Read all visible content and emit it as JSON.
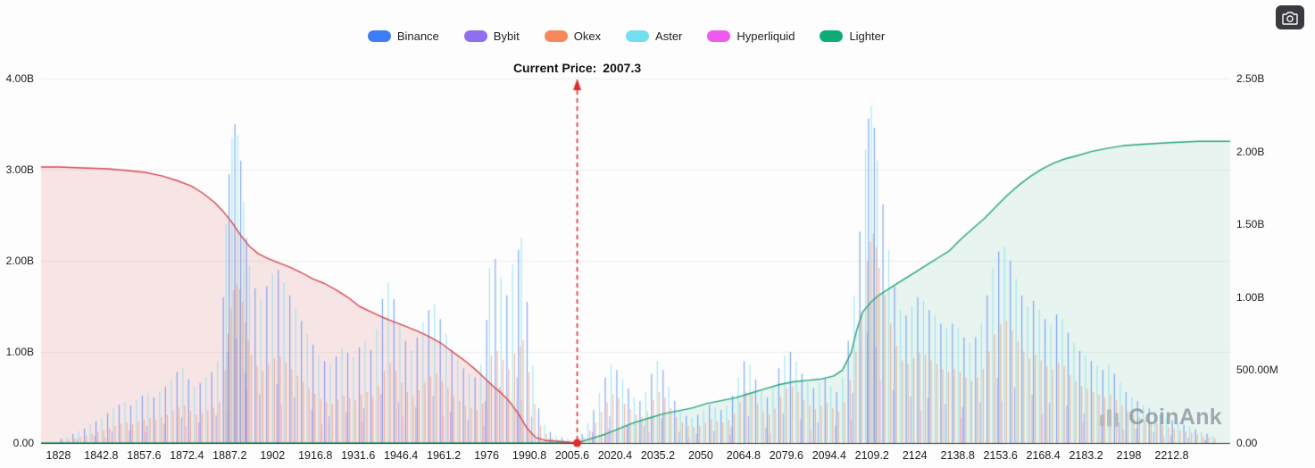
{
  "header": {
    "legend": [
      {
        "label": "Binance",
        "color": "#3D7EF5"
      },
      {
        "label": "Bybit",
        "color": "#8F6FF0"
      },
      {
        "label": "Okex",
        "color": "#F8875B"
      },
      {
        "label": "Aster",
        "color": "#73DFEE"
      },
      {
        "label": "Hyperliquid",
        "color": "#EF5BEE"
      },
      {
        "label": "Lighter",
        "color": "#0EAD75"
      }
    ]
  },
  "title": {
    "prefix": "Current Price:",
    "value": "2007.3"
  },
  "watermark": "CoinAnk",
  "chart_data": {
    "type": "area",
    "subtype": "orderbook-depth-with-bars",
    "title": "Current Price: 2007.3",
    "current_price": 2007.3,
    "current_price_line_color": "#E02B2B",
    "grid": true,
    "legend_position": "top-center",
    "x_axis": {
      "min": 1822,
      "max": 2233,
      "ticks": [
        "1828",
        "1842.8",
        "1857.6",
        "1872.4",
        "1887.2",
        "1902",
        "1916.8",
        "1931.6",
        "1946.4",
        "1961.2",
        "1976",
        "1990.8",
        "2005.6",
        "2020.4",
        "2035.2",
        "2050",
        "2064.8",
        "2079.6",
        "2094.4",
        "2109.2",
        "2124",
        "2138.8",
        "2153.6",
        "2168.4",
        "2183.2",
        "2198",
        "2212.8"
      ]
    },
    "left_axis": {
      "max": 4,
      "unit": "billions",
      "ticks": [
        {
          "label": "0.00",
          "value": 0
        },
        {
          "label": "1.00B",
          "value": 1
        },
        {
          "label": "2.00B",
          "value": 2
        },
        {
          "label": "3.00B",
          "value": 3
        },
        {
          "label": "4.00B",
          "value": 4
        }
      ]
    },
    "right_axis": {
      "max": 2.5,
      "unit": "billions",
      "ticks": [
        {
          "label": "0.00",
          "value": 0
        },
        {
          "label": "500.00M",
          "value": 0.5
        },
        {
          "label": "1.00B",
          "value": 1
        },
        {
          "label": "1.50B",
          "value": 1.5
        },
        {
          "label": "2.00B",
          "value": 2
        },
        {
          "label": "2.50B",
          "value": 2.5
        }
      ]
    },
    "series": [
      {
        "name": "cumulative-bids",
        "axis": "left",
        "line": "#D4454F",
        "fill": "rgba(212,69,79,0.13)",
        "points": [
          [
            1828,
            3.03
          ],
          [
            1836,
            3.02
          ],
          [
            1845,
            3.01
          ],
          [
            1852,
            2.99
          ],
          [
            1858,
            2.97
          ],
          [
            1864,
            2.93
          ],
          [
            1869,
            2.88
          ],
          [
            1874,
            2.82
          ],
          [
            1878,
            2.74
          ],
          [
            1882,
            2.64
          ],
          [
            1885,
            2.54
          ],
          [
            1888,
            2.42
          ],
          [
            1891,
            2.28
          ],
          [
            1894,
            2.16
          ],
          [
            1897,
            2.08
          ],
          [
            1900,
            2.03
          ],
          [
            1904,
            1.98
          ],
          [
            1908,
            1.93
          ],
          [
            1912,
            1.87
          ],
          [
            1916,
            1.8
          ],
          [
            1920,
            1.75
          ],
          [
            1924,
            1.68
          ],
          [
            1928,
            1.6
          ],
          [
            1932,
            1.5
          ],
          [
            1936,
            1.44
          ],
          [
            1940,
            1.38
          ],
          [
            1944,
            1.33
          ],
          [
            1948,
            1.28
          ],
          [
            1952,
            1.23
          ],
          [
            1956,
            1.17
          ],
          [
            1960,
            1.1
          ],
          [
            1963,
            1.03
          ],
          [
            1966,
            0.96
          ],
          [
            1969,
            0.89
          ],
          [
            1972,
            0.81
          ],
          [
            1975,
            0.72
          ],
          [
            1978,
            0.63
          ],
          [
            1981,
            0.55
          ],
          [
            1984,
            0.45
          ],
          [
            1987,
            0.32
          ],
          [
            1990,
            0.16
          ],
          [
            1993,
            0.06
          ],
          [
            1996,
            0.03
          ],
          [
            2000,
            0.02
          ],
          [
            2004,
            0.01
          ],
          [
            2007.3,
            0
          ]
        ]
      },
      {
        "name": "cumulative-asks",
        "axis": "right",
        "line": "#23A377",
        "fill": "rgba(35,163,119,0.10)",
        "points": [
          [
            2007.3,
            0
          ],
          [
            2012,
            0.03
          ],
          [
            2017,
            0.06
          ],
          [
            2022,
            0.1
          ],
          [
            2027,
            0.14
          ],
          [
            2032,
            0.17
          ],
          [
            2037,
            0.2
          ],
          [
            2042,
            0.22
          ],
          [
            2047,
            0.24
          ],
          [
            2052,
            0.27
          ],
          [
            2057,
            0.29
          ],
          [
            2062,
            0.31
          ],
          [
            2067,
            0.34
          ],
          [
            2072,
            0.37
          ],
          [
            2077,
            0.4
          ],
          [
            2082,
            0.42
          ],
          [
            2087,
            0.43
          ],
          [
            2092,
            0.44
          ],
          [
            2096,
            0.46
          ],
          [
            2099,
            0.5
          ],
          [
            2102,
            0.62
          ],
          [
            2104,
            0.78
          ],
          [
            2106,
            0.9
          ],
          [
            2109,
            0.97
          ],
          [
            2112,
            1.02
          ],
          [
            2116,
            1.07
          ],
          [
            2120,
            1.12
          ],
          [
            2124,
            1.17
          ],
          [
            2128,
            1.22
          ],
          [
            2132,
            1.27
          ],
          [
            2136,
            1.32
          ],
          [
            2140,
            1.4
          ],
          [
            2144,
            1.47
          ],
          [
            2148,
            1.54
          ],
          [
            2152,
            1.62
          ],
          [
            2156,
            1.7
          ],
          [
            2160,
            1.77
          ],
          [
            2164,
            1.83
          ],
          [
            2168,
            1.88
          ],
          [
            2172,
            1.92
          ],
          [
            2176,
            1.95
          ],
          [
            2180,
            1.97
          ],
          [
            2185,
            2.0
          ],
          [
            2190,
            2.02
          ],
          [
            2196,
            2.04
          ],
          [
            2203,
            2.05
          ],
          [
            2212,
            2.06
          ],
          [
            2222,
            2.07
          ],
          [
            2232,
            2.07
          ]
        ]
      }
    ],
    "depth_bars": {
      "axis": "left",
      "points": [
        [
          1829,
          0.05
        ],
        [
          1831,
          0.07
        ],
        [
          1833,
          0.1
        ],
        [
          1835,
          0.13
        ],
        [
          1837,
          0.16
        ],
        [
          1839,
          0.2
        ],
        [
          1841,
          0.24
        ],
        [
          1843,
          0.28
        ],
        [
          1845,
          0.33
        ],
        [
          1847,
          0.38
        ],
        [
          1849,
          0.42
        ],
        [
          1851,
          0.45
        ],
        [
          1853,
          0.41
        ],
        [
          1855,
          0.47
        ],
        [
          1857,
          0.52
        ],
        [
          1859,
          0.55
        ],
        [
          1861,
          0.5
        ],
        [
          1863,
          0.57
        ],
        [
          1865,
          0.62
        ],
        [
          1867,
          0.7
        ],
        [
          1869,
          0.78
        ],
        [
          1871,
          0.83
        ],
        [
          1873,
          0.7
        ],
        [
          1875,
          0.62
        ],
        [
          1877,
          0.66
        ],
        [
          1879,
          0.72
        ],
        [
          1881,
          0.78
        ],
        [
          1883,
          0.9
        ],
        [
          1885,
          1.6
        ],
        [
          1886,
          2.4
        ],
        [
          1887,
          2.95
        ],
        [
          1888,
          3.35
        ],
        [
          1889,
          3.5
        ],
        [
          1890,
          3.38
        ],
        [
          1891,
          3.1
        ],
        [
          1892,
          2.65
        ],
        [
          1893,
          2.25
        ],
        [
          1894,
          1.95
        ],
        [
          1896,
          1.7
        ],
        [
          1898,
          1.58
        ],
        [
          1900,
          1.72
        ],
        [
          1902,
          1.86
        ],
        [
          1904,
          1.9
        ],
        [
          1906,
          1.76
        ],
        [
          1908,
          1.62
        ],
        [
          1910,
          1.48
        ],
        [
          1912,
          1.34
        ],
        [
          1914,
          1.2
        ],
        [
          1916,
          1.08
        ],
        [
          1918,
          0.97
        ],
        [
          1920,
          0.9
        ],
        [
          1922,
          0.86
        ],
        [
          1924,
          0.95
        ],
        [
          1926,
          1.04
        ],
        [
          1928,
          0.99
        ],
        [
          1930,
          0.94
        ],
        [
          1932,
          1.05
        ],
        [
          1934,
          1.12
        ],
        [
          1936,
          1.02
        ],
        [
          1938,
          1.25
        ],
        [
          1940,
          1.58
        ],
        [
          1942,
          1.76
        ],
        [
          1944,
          1.58
        ],
        [
          1946,
          1.32
        ],
        [
          1948,
          1.12
        ],
        [
          1950,
          1.02
        ],
        [
          1952,
          1.16
        ],
        [
          1954,
          1.32
        ],
        [
          1956,
          1.46
        ],
        [
          1958,
          1.52
        ],
        [
          1960,
          1.36
        ],
        [
          1962,
          1.2
        ],
        [
          1964,
          1.02
        ],
        [
          1966,
          0.92
        ],
        [
          1968,
          0.82
        ],
        [
          1970,
          0.76
        ],
        [
          1972,
          0.72
        ],
        [
          1974,
          0.86
        ],
        [
          1976,
          1.35
        ],
        [
          1977,
          1.92
        ],
        [
          1979,
          2.02
        ],
        [
          1981,
          1.82
        ],
        [
          1983,
          1.62
        ],
        [
          1985,
          1.96
        ],
        [
          1987,
          2.12
        ],
        [
          1988,
          2.26
        ],
        [
          1990,
          1.55
        ],
        [
          1992,
          0.85
        ],
        [
          1994,
          0.38
        ],
        [
          1996,
          0.2
        ],
        [
          1998,
          0.12
        ],
        [
          2000,
          0.08
        ],
        [
          2002,
          0.06
        ],
        [
          2004,
          0.05
        ],
        [
          2009,
          0.1
        ],
        [
          2011,
          0.22
        ],
        [
          2013,
          0.36
        ],
        [
          2015,
          0.55
        ],
        [
          2017,
          0.72
        ],
        [
          2019,
          0.86
        ],
        [
          2021,
          0.8
        ],
        [
          2023,
          0.7
        ],
        [
          2025,
          0.6
        ],
        [
          2027,
          0.5
        ],
        [
          2029,
          0.46
        ],
        [
          2031,
          0.56
        ],
        [
          2033,
          0.76
        ],
        [
          2035,
          0.9
        ],
        [
          2037,
          0.8
        ],
        [
          2039,
          0.62
        ],
        [
          2041,
          0.46
        ],
        [
          2043,
          0.36
        ],
        [
          2045,
          0.3
        ],
        [
          2047,
          0.28
        ],
        [
          2049,
          0.31
        ],
        [
          2051,
          0.36
        ],
        [
          2053,
          0.42
        ],
        [
          2055,
          0.39
        ],
        [
          2057,
          0.36
        ],
        [
          2059,
          0.41
        ],
        [
          2061,
          0.52
        ],
        [
          2063,
          0.72
        ],
        [
          2065,
          0.9
        ],
        [
          2067,
          0.86
        ],
        [
          2069,
          0.7
        ],
        [
          2071,
          0.56
        ],
        [
          2073,
          0.5
        ],
        [
          2075,
          0.61
        ],
        [
          2077,
          0.82
        ],
        [
          2079,
          0.96
        ],
        [
          2081,
          1.0
        ],
        [
          2083,
          0.9
        ],
        [
          2085,
          0.76
        ],
        [
          2087,
          0.66
        ],
        [
          2089,
          0.6
        ],
        [
          2091,
          0.66
        ],
        [
          2093,
          0.71
        ],
        [
          2095,
          0.62
        ],
        [
          2097,
          0.56
        ],
        [
          2099,
          0.72
        ],
        [
          2101,
          1.12
        ],
        [
          2103,
          1.62
        ],
        [
          2105,
          2.32
        ],
        [
          2107,
          3.22
        ],
        [
          2108,
          3.56
        ],
        [
          2109,
          3.7
        ],
        [
          2110,
          3.46
        ],
        [
          2111,
          3.1
        ],
        [
          2113,
          2.62
        ],
        [
          2115,
          2.12
        ],
        [
          2117,
          1.72
        ],
        [
          2119,
          1.46
        ],
        [
          2121,
          1.4
        ],
        [
          2123,
          1.5
        ],
        [
          2125,
          1.6
        ],
        [
          2127,
          1.56
        ],
        [
          2129,
          1.46
        ],
        [
          2131,
          1.4
        ],
        [
          2133,
          1.31
        ],
        [
          2135,
          1.26
        ],
        [
          2137,
          1.31
        ],
        [
          2139,
          1.26
        ],
        [
          2141,
          1.16
        ],
        [
          2143,
          1.1
        ],
        [
          2145,
          1.16
        ],
        [
          2147,
          1.31
        ],
        [
          2149,
          1.62
        ],
        [
          2151,
          1.92
        ],
        [
          2153,
          2.1
        ],
        [
          2155,
          2.16
        ],
        [
          2157,
          2.0
        ],
        [
          2159,
          1.8
        ],
        [
          2161,
          1.62
        ],
        [
          2163,
          1.5
        ],
        [
          2165,
          1.56
        ],
        [
          2167,
          1.46
        ],
        [
          2169,
          1.36
        ],
        [
          2171,
          1.3
        ],
        [
          2173,
          1.41
        ],
        [
          2175,
          1.36
        ],
        [
          2177,
          1.21
        ],
        [
          2179,
          1.1
        ],
        [
          2181,
          1.01
        ],
        [
          2183,
          0.96
        ],
        [
          2185,
          0.9
        ],
        [
          2187,
          0.85
        ],
        [
          2189,
          0.8
        ],
        [
          2191,
          0.86
        ],
        [
          2193,
          0.76
        ],
        [
          2195,
          0.66
        ],
        [
          2197,
          0.56
        ],
        [
          2199,
          0.5
        ],
        [
          2201,
          0.46
        ],
        [
          2203,
          0.41
        ],
        [
          2205,
          0.38
        ],
        [
          2207,
          0.35
        ],
        [
          2209,
          0.31
        ],
        [
          2211,
          0.28
        ],
        [
          2213,
          0.25
        ],
        [
          2215,
          0.22
        ],
        [
          2217,
          0.2
        ],
        [
          2219,
          0.18
        ],
        [
          2221,
          0.15
        ],
        [
          2223,
          0.12
        ],
        [
          2225,
          0.1
        ],
        [
          2227,
          0.08
        ]
      ]
    }
  }
}
